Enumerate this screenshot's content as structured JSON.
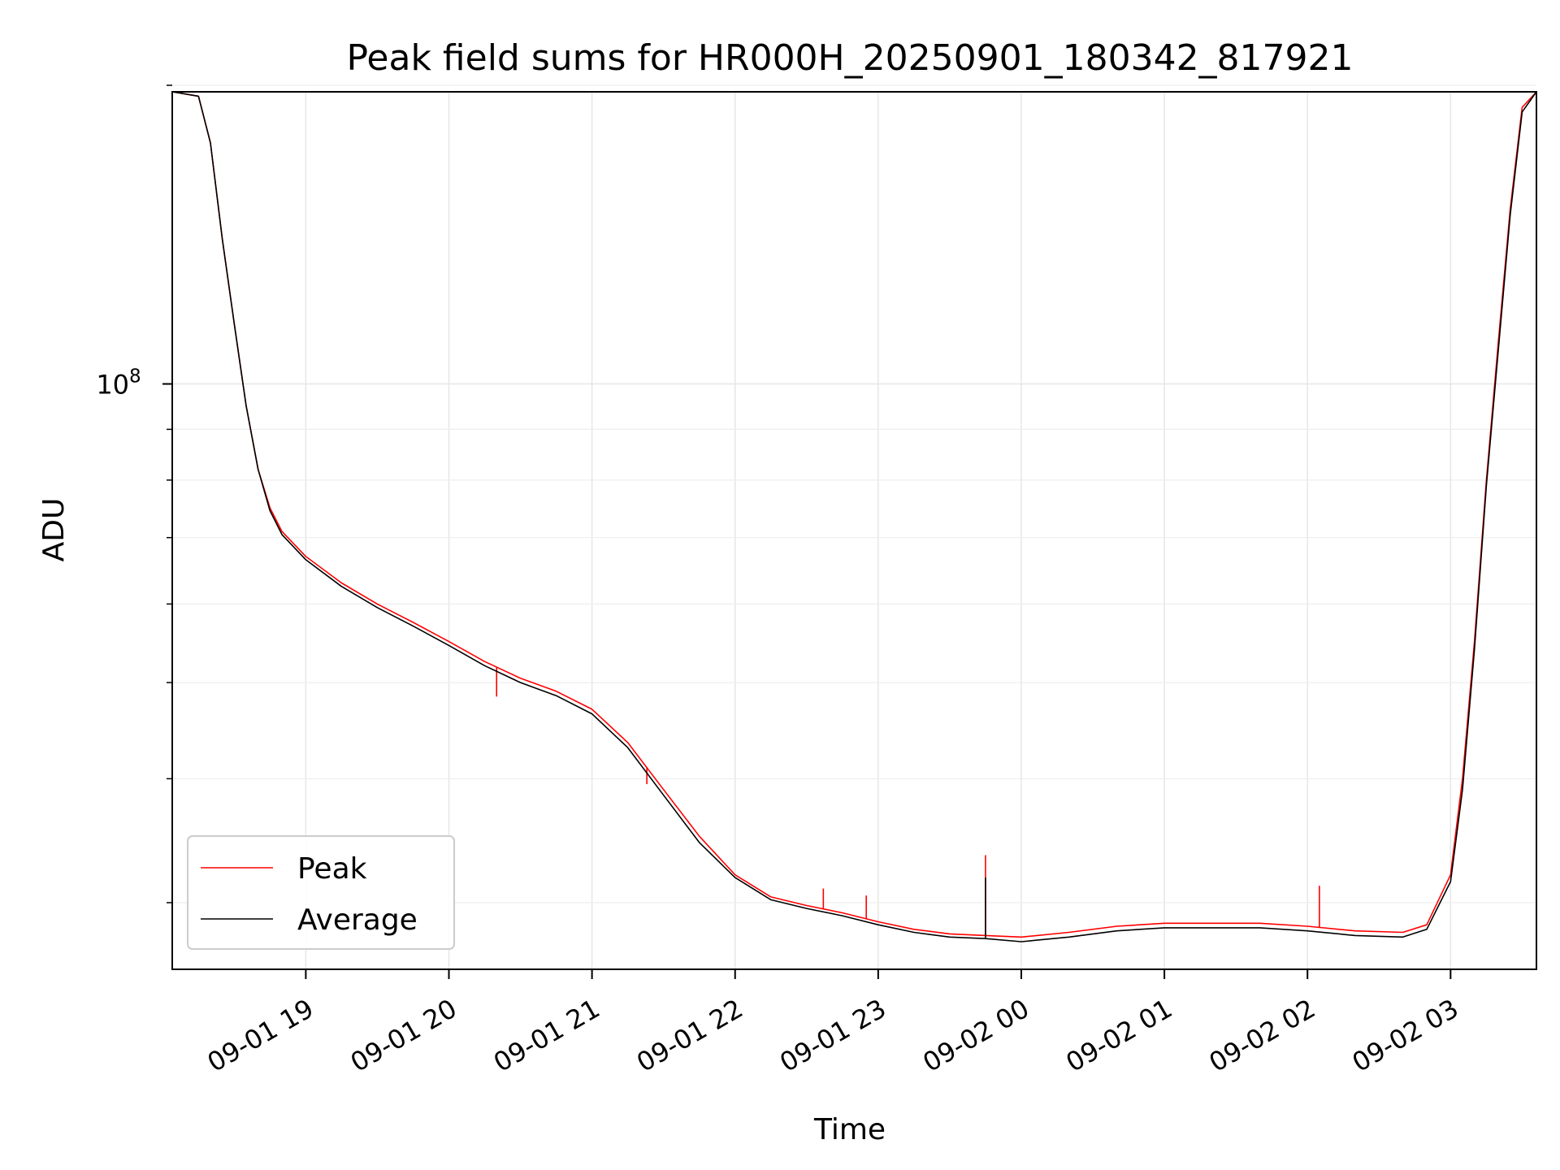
{
  "chart_data": {
    "type": "line",
    "title": "Peak field sums for HR000H_20250901_180342_817921",
    "xlabel": "Time",
    "ylabel": "ADU",
    "x_axis": {
      "kind": "time",
      "range": [
        "2025-09-01 18:04",
        "2025-09-02 03:36"
      ],
      "ticks": [
        "2025-09-01 19:00",
        "2025-09-01 20:00",
        "2025-09-01 21:00",
        "2025-09-01 22:00",
        "2025-09-01 23:00",
        "2025-09-02 00:00",
        "2025-09-02 01:00",
        "2025-09-02 02:00",
        "2025-09-02 03:00"
      ],
      "tick_labels": [
        "09-01 19",
        "09-01 20",
        "09-01 21",
        "09-01 22",
        "09-01 23",
        "09-02 00",
        "09-02 01",
        "09-02 02",
        "09-02 03"
      ],
      "tick_label_rotation": 30
    },
    "y_axis": {
      "scale": "log",
      "range": [
        25700000,
        197000000
      ],
      "major_ticks": [
        100000000
      ],
      "major_tick_labels": [
        {
          "base": "10",
          "exp": "8"
        }
      ],
      "minor_ticks": [
        30000000,
        40000000,
        50000000,
        60000000,
        70000000,
        80000000,
        90000000,
        200000000
      ]
    },
    "grid": true,
    "legend": {
      "placement": "lower-left"
    },
    "series": [
      {
        "name": "Peak",
        "color": "#ff0000",
        "x": [
          "2025-09-01 18:04",
          "2025-09-01 18:15",
          "2025-09-01 18:20",
          "2025-09-01 18:25",
          "2025-09-01 18:30",
          "2025-09-01 18:35",
          "2025-09-01 18:40",
          "2025-09-01 18:45",
          "2025-09-01 18:50",
          "2025-09-01 19:00",
          "2025-09-01 19:15",
          "2025-09-01 19:30",
          "2025-09-01 19:45",
          "2025-09-01 20:00",
          "2025-09-01 20:15",
          "2025-09-01 20:30",
          "2025-09-01 20:45",
          "2025-09-01 21:00",
          "2025-09-01 21:15",
          "2025-09-01 21:30",
          "2025-09-01 21:45",
          "2025-09-01 22:00",
          "2025-09-01 22:15",
          "2025-09-01 22:30",
          "2025-09-01 22:45",
          "2025-09-01 23:00",
          "2025-09-01 23:15",
          "2025-09-01 23:30",
          "2025-09-01 23:45",
          "2025-09-02 00:00",
          "2025-09-02 00:20",
          "2025-09-02 00:40",
          "2025-09-02 01:00",
          "2025-09-02 01:20",
          "2025-09-02 01:40",
          "2025-09-02 02:00",
          "2025-09-02 02:20",
          "2025-09-02 02:40",
          "2025-09-02 02:50",
          "2025-09-02 03:00",
          "2025-09-02 03:05",
          "2025-09-02 03:10",
          "2025-09-02 03:15",
          "2025-09-02 03:20",
          "2025-09-02 03:25",
          "2025-09-02 03:30",
          "2025-09-02 03:36"
        ],
        "y": [
          197000000,
          195000000,
          175000000,
          140000000,
          115000000,
          95000000,
          82000000,
          75000000,
          71000000,
          67000000,
          63000000,
          60000000,
          57500000,
          55000000,
          52500000,
          50500000,
          49000000,
          47000000,
          43500000,
          39000000,
          35000000,
          32000000,
          30400000,
          29800000,
          29300000,
          28700000,
          28200000,
          27900000,
          27800000,
          27700000,
          28000000,
          28400000,
          28600000,
          28600000,
          28600000,
          28400000,
          28100000,
          28000000,
          28500000,
          32000000,
          40000000,
          55000000,
          80000000,
          110000000,
          150000000,
          190000000,
          197000000
        ],
        "spikes": [
          {
            "x": "2025-09-01 20:20",
            "y": 48400000
          },
          {
            "x": "2025-09-01 21:23",
            "y": 39500000
          },
          {
            "x": "2025-09-01 22:37",
            "y": 31000000
          },
          {
            "x": "2025-09-01 22:55",
            "y": 30500000
          },
          {
            "x": "2025-09-01 23:45",
            "y": 33500000
          },
          {
            "x": "2025-09-02 02:05",
            "y": 31200000
          }
        ]
      },
      {
        "name": "Average",
        "color": "#000000",
        "x": [
          "2025-09-01 18:04",
          "2025-09-01 18:15",
          "2025-09-01 18:20",
          "2025-09-01 18:25",
          "2025-09-01 18:30",
          "2025-09-01 18:35",
          "2025-09-01 18:40",
          "2025-09-01 18:45",
          "2025-09-01 18:50",
          "2025-09-01 19:00",
          "2025-09-01 19:15",
          "2025-09-01 19:30",
          "2025-09-01 19:45",
          "2025-09-01 20:00",
          "2025-09-01 20:15",
          "2025-09-01 20:30",
          "2025-09-01 20:45",
          "2025-09-01 21:00",
          "2025-09-01 21:15",
          "2025-09-01 21:30",
          "2025-09-01 21:45",
          "2025-09-01 22:00",
          "2025-09-01 22:15",
          "2025-09-01 22:30",
          "2025-09-01 22:45",
          "2025-09-01 23:00",
          "2025-09-01 23:15",
          "2025-09-01 23:30",
          "2025-09-01 23:45",
          "2025-09-02 00:00",
          "2025-09-02 00:20",
          "2025-09-02 00:40",
          "2025-09-02 01:00",
          "2025-09-02 01:20",
          "2025-09-02 01:40",
          "2025-09-02 02:00",
          "2025-09-02 02:20",
          "2025-09-02 02:40",
          "2025-09-02 02:50",
          "2025-09-02 03:00",
          "2025-09-02 03:05",
          "2025-09-02 03:10",
          "2025-09-02 03:15",
          "2025-09-02 03:20",
          "2025-09-02 03:25",
          "2025-09-02 03:30",
          "2025-09-02 03:36"
        ],
        "y": [
          197000000,
          195000000,
          175000000,
          140000000,
          115000000,
          95000000,
          82000000,
          74500000,
          70500000,
          66500000,
          62500000,
          59500000,
          57000000,
          54500000,
          52000000,
          50000000,
          48500000,
          46500000,
          43000000,
          38500000,
          34500000,
          31800000,
          30200000,
          29600000,
          29100000,
          28500000,
          28000000,
          27700000,
          27600000,
          27400000,
          27700000,
          28100000,
          28300000,
          28300000,
          28300000,
          28100000,
          27800000,
          27700000,
          28200000,
          31500000,
          39000000,
          54000000,
          79000000,
          108000000,
          148000000,
          188000000,
          197000000
        ],
        "spikes": [
          {
            "x": "2025-09-01 23:45",
            "y": 31800000
          }
        ]
      }
    ]
  }
}
